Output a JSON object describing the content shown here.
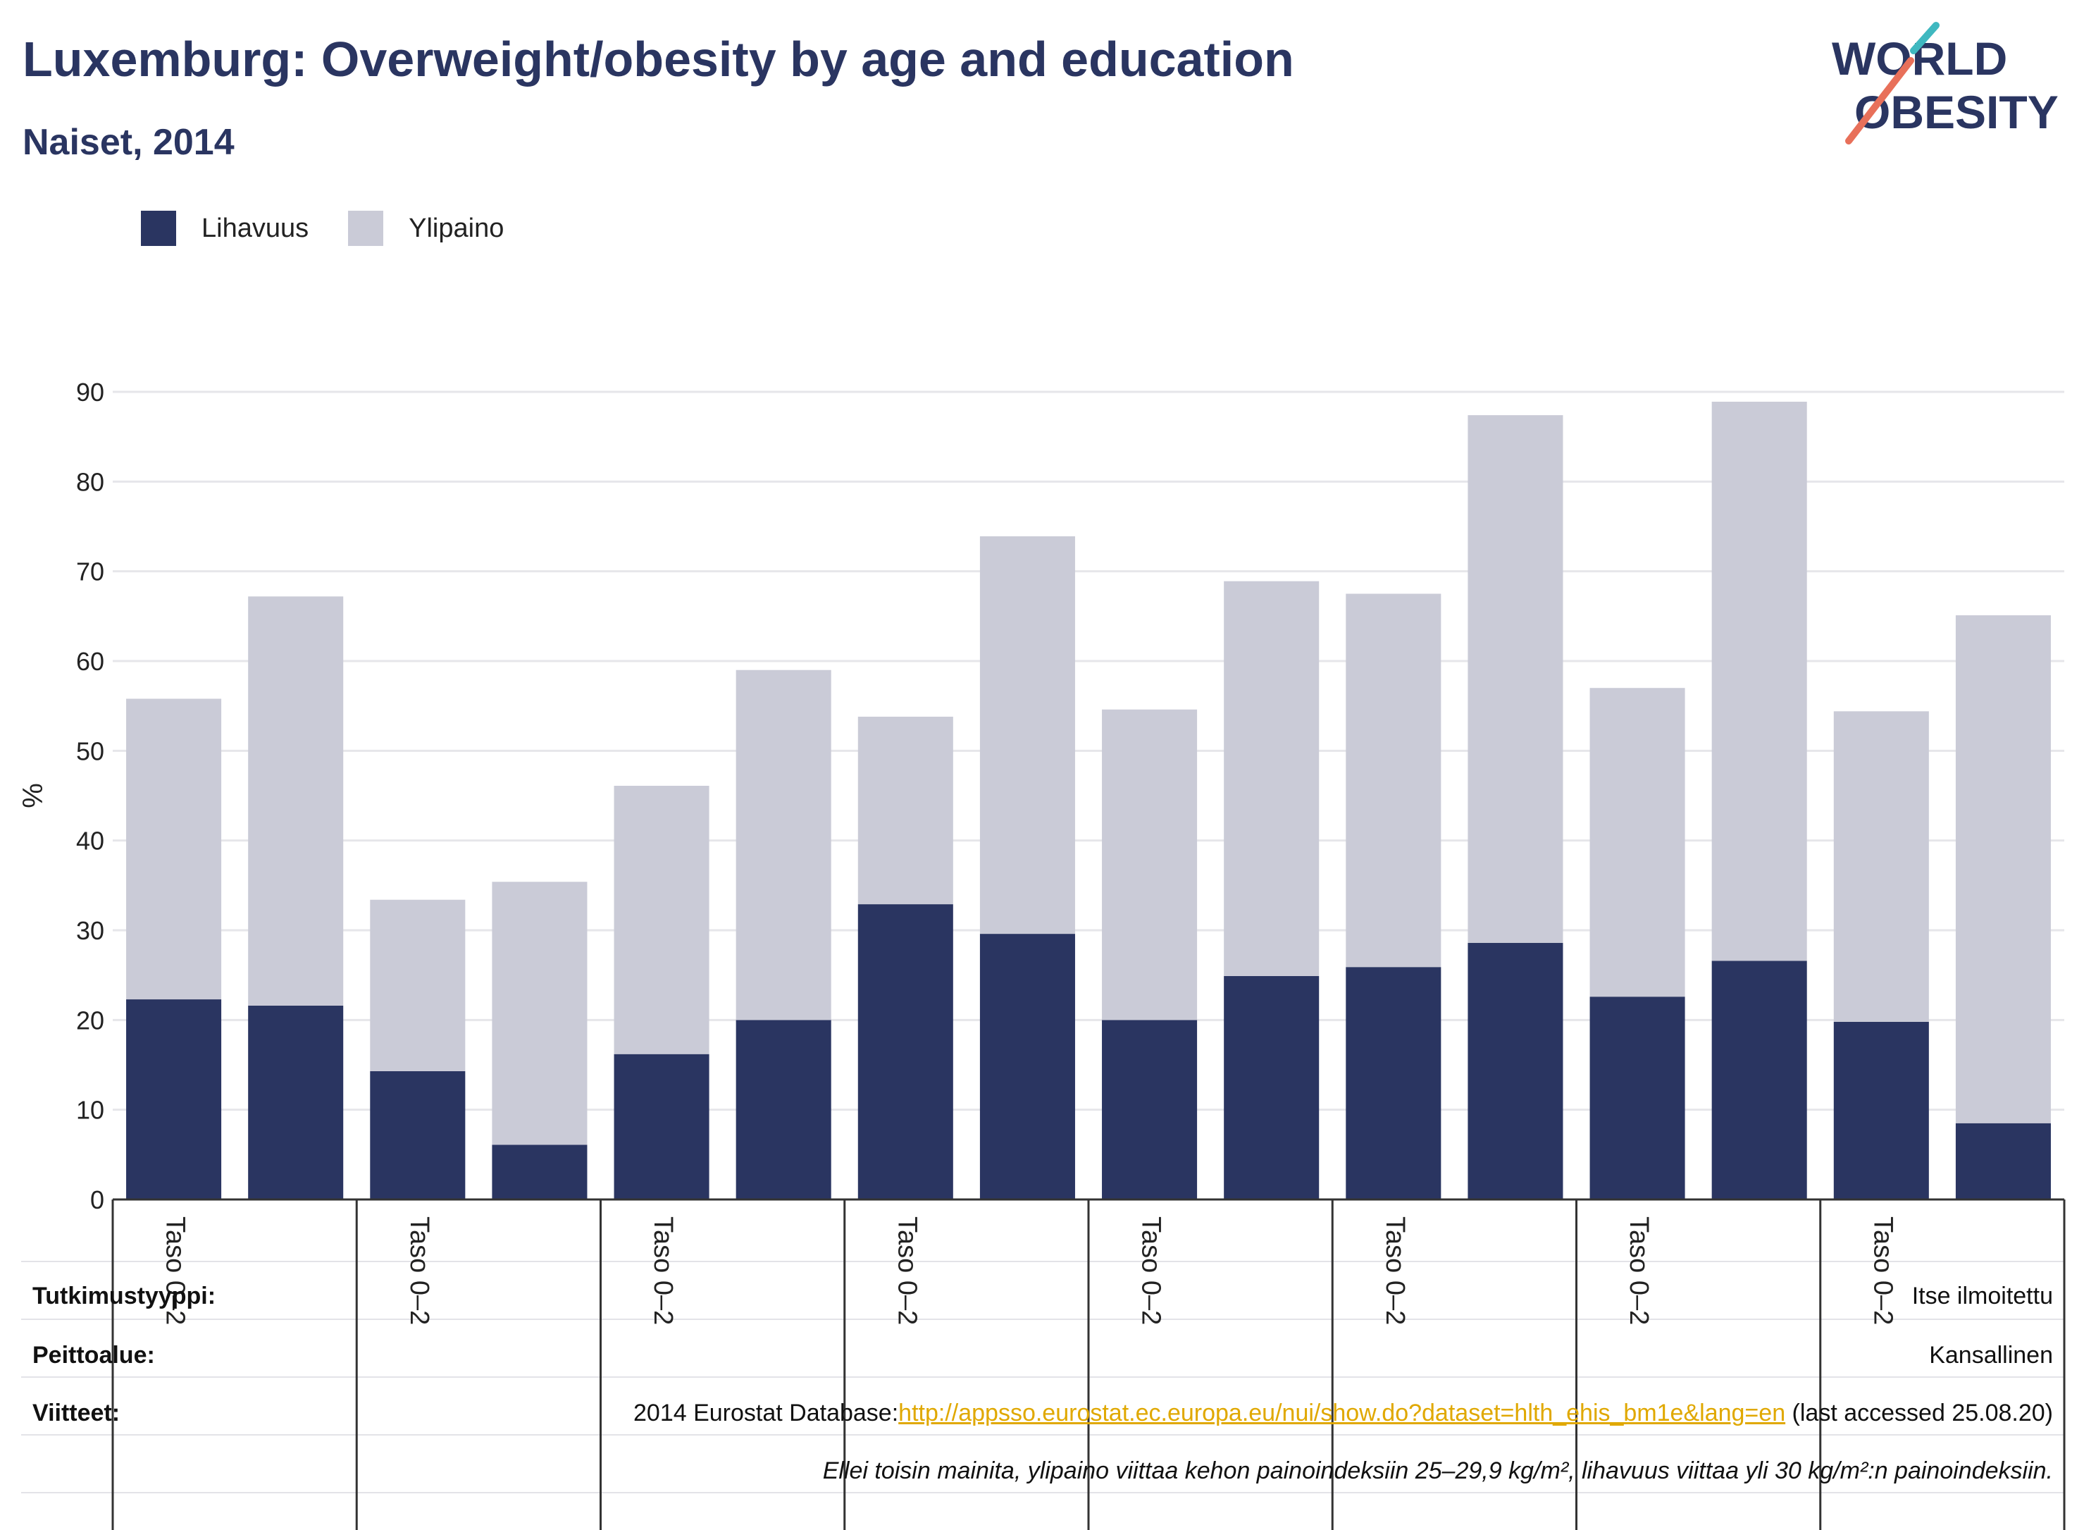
{
  "header": {
    "title": "Luxemburg: Overweight/obesity by age and education",
    "subtitle": "Naiset, 2014"
  },
  "logo": {
    "line1": "WORLD",
    "line2": "OBESITY"
  },
  "colors": {
    "obesity": "#2a3561",
    "overweight": "#cacbd7",
    "text": "#2a3561",
    "grid": "#e6e6ea",
    "axis": "#333333",
    "link": "#e0a800",
    "logo_teal": "#3fb8c0",
    "logo_coral": "#e8705a"
  },
  "chart_data": {
    "type": "bar",
    "stacked": true,
    "ylabel": "%",
    "ylim": [
      0,
      90
    ],
    "yticks": [
      0,
      10,
      20,
      30,
      40,
      50,
      60,
      70,
      80,
      90
    ],
    "grid": true,
    "legend_placement": "top-left",
    "categories": [
      "Taso 0–2",
      "",
      "Taso 0–2",
      "",
      "Taso 0–2",
      "",
      "Taso 0–2",
      "",
      "Taso 0–2",
      "",
      "Taso 0–2",
      "",
      "Taso 0–2",
      "",
      "Taso 0–2",
      ""
    ],
    "series": [
      {
        "name": "Lihavuus",
        "values": [
          22.3,
          21.6,
          14.3,
          6.1,
          16.2,
          20.0,
          32.9,
          29.6,
          20.0,
          24.9,
          25.9,
          28.6,
          22.6,
          26.6,
          19.8,
          8.5
        ]
      },
      {
        "name": "Ylipaino",
        "values": [
          33.5,
          45.6,
          19.1,
          29.3,
          29.9,
          39.0,
          20.9,
          44.3,
          34.6,
          44.0,
          41.6,
          58.8,
          34.4,
          62.3,
          34.6,
          56.6
        ]
      }
    ]
  },
  "meta": {
    "study_type_label": "Tutkimustyyppi:",
    "study_type_value": "Itse ilmoitettu",
    "coverage_label": "Peittoalue:",
    "coverage_value": "Kansallinen",
    "references_label": "Viitteet:",
    "references_prefix": "2014 Eurostat Database:",
    "references_link": "http://appsso.eurostat.ec.europa.eu/nui/show.do?dataset=hlth_ehis_bm1e&lang=en",
    "references_suffix": " (last accessed 25.08.20)",
    "note": "Ellei toisin mainita, ylipaino viittaa kehon painoindeksiin 25–29,9 kg/m², lihavuus viittaa yli 30 kg/m²:n painoindeksiin."
  }
}
